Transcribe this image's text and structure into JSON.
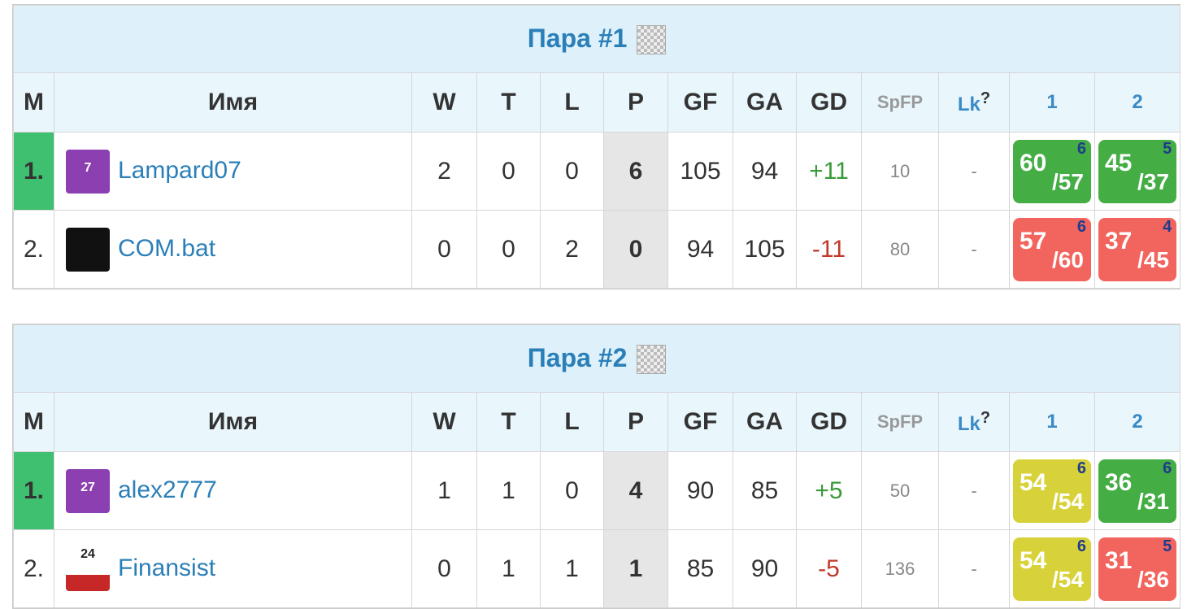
{
  "groups": [
    {
      "title": "Пара #1",
      "headers": {
        "rank": "M",
        "name": "Имя",
        "w": "W",
        "t": "T",
        "l": "L",
        "p": "P",
        "gf": "GF",
        "ga": "GA",
        "gd": "GD",
        "spfp": "SpFP",
        "lk": "Lk",
        "help": "?",
        "match1": "1",
        "match2": "2"
      },
      "rows": [
        {
          "rank": "1.",
          "avatar_label": "7",
          "name": "Lampard07",
          "w": 2,
          "t": 0,
          "l": 0,
          "p": 6,
          "gf": 105,
          "ga": 94,
          "gd": "+11",
          "spfp": 10,
          "lk": "-",
          "matches": [
            {
              "for": "60",
              "against": "/57",
              "round": 6,
              "color": "#44ad44"
            },
            {
              "for": "45",
              "against": "/37",
              "round": 5,
              "color": "#44ad44"
            }
          ]
        },
        {
          "rank": "2.",
          "name": "COM.bat",
          "w": 0,
          "t": 0,
          "l": 2,
          "p": 0,
          "gf": 94,
          "ga": 105,
          "gd": "-11",
          "spfp": 80,
          "lk": "-",
          "matches": [
            {
              "for": "57",
              "against": "/60",
              "round": 6,
              "color": "#f2645e"
            },
            {
              "for": "37",
              "against": "/45",
              "round": 4,
              "color": "#f2645e"
            }
          ]
        }
      ]
    },
    {
      "title": "Пара #2",
      "headers": {
        "rank": "M",
        "name": "Имя",
        "w": "W",
        "t": "T",
        "l": "L",
        "p": "P",
        "gf": "GF",
        "ga": "GA",
        "gd": "GD",
        "spfp": "SpFP",
        "lk": "Lk",
        "help": "?",
        "match1": "1",
        "match2": "2"
      },
      "rows": [
        {
          "rank": "1.",
          "avatar_label": "27",
          "name": "alex2777",
          "w": 1,
          "t": 1,
          "l": 0,
          "p": 4,
          "gf": 90,
          "ga": 85,
          "gd": "+5",
          "spfp": 50,
          "lk": "-",
          "matches": [
            {
              "for": "54",
              "against": "/54",
              "round": 6,
              "color": "#d8d23a"
            },
            {
              "for": "36",
              "against": "/31",
              "round": 6,
              "color": "#44ad44"
            }
          ]
        },
        {
          "rank": "2.",
          "avatar_label": "24",
          "name": "Finansist",
          "w": 0,
          "t": 1,
          "l": 1,
          "p": 1,
          "gf": 85,
          "ga": 90,
          "gd": "-5",
          "spfp": 136,
          "lk": "-",
          "matches": [
            {
              "for": "54",
              "against": "/54",
              "round": 6,
              "color": "#d8d23a"
            },
            {
              "for": "31",
              "against": "/36",
              "round": 5,
              "color": "#f2645e"
            }
          ]
        }
      ]
    }
  ]
}
